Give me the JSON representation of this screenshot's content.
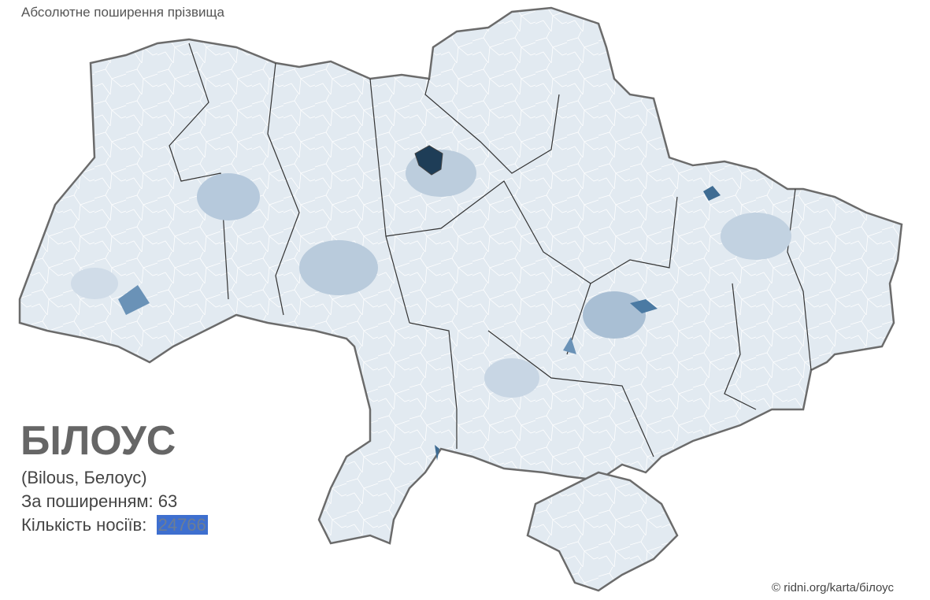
{
  "header": {
    "title": "Абсолютне поширення прізвища"
  },
  "surname": {
    "name": "БІЛОУС",
    "variants": "(Bilous, Белоус)",
    "rank_label": "За поширенням:",
    "rank": 63,
    "count_label": "Кількість носіїв:",
    "count": 24766
  },
  "footer": {
    "credit": "© ridni.org/karta/білоус"
  }
}
